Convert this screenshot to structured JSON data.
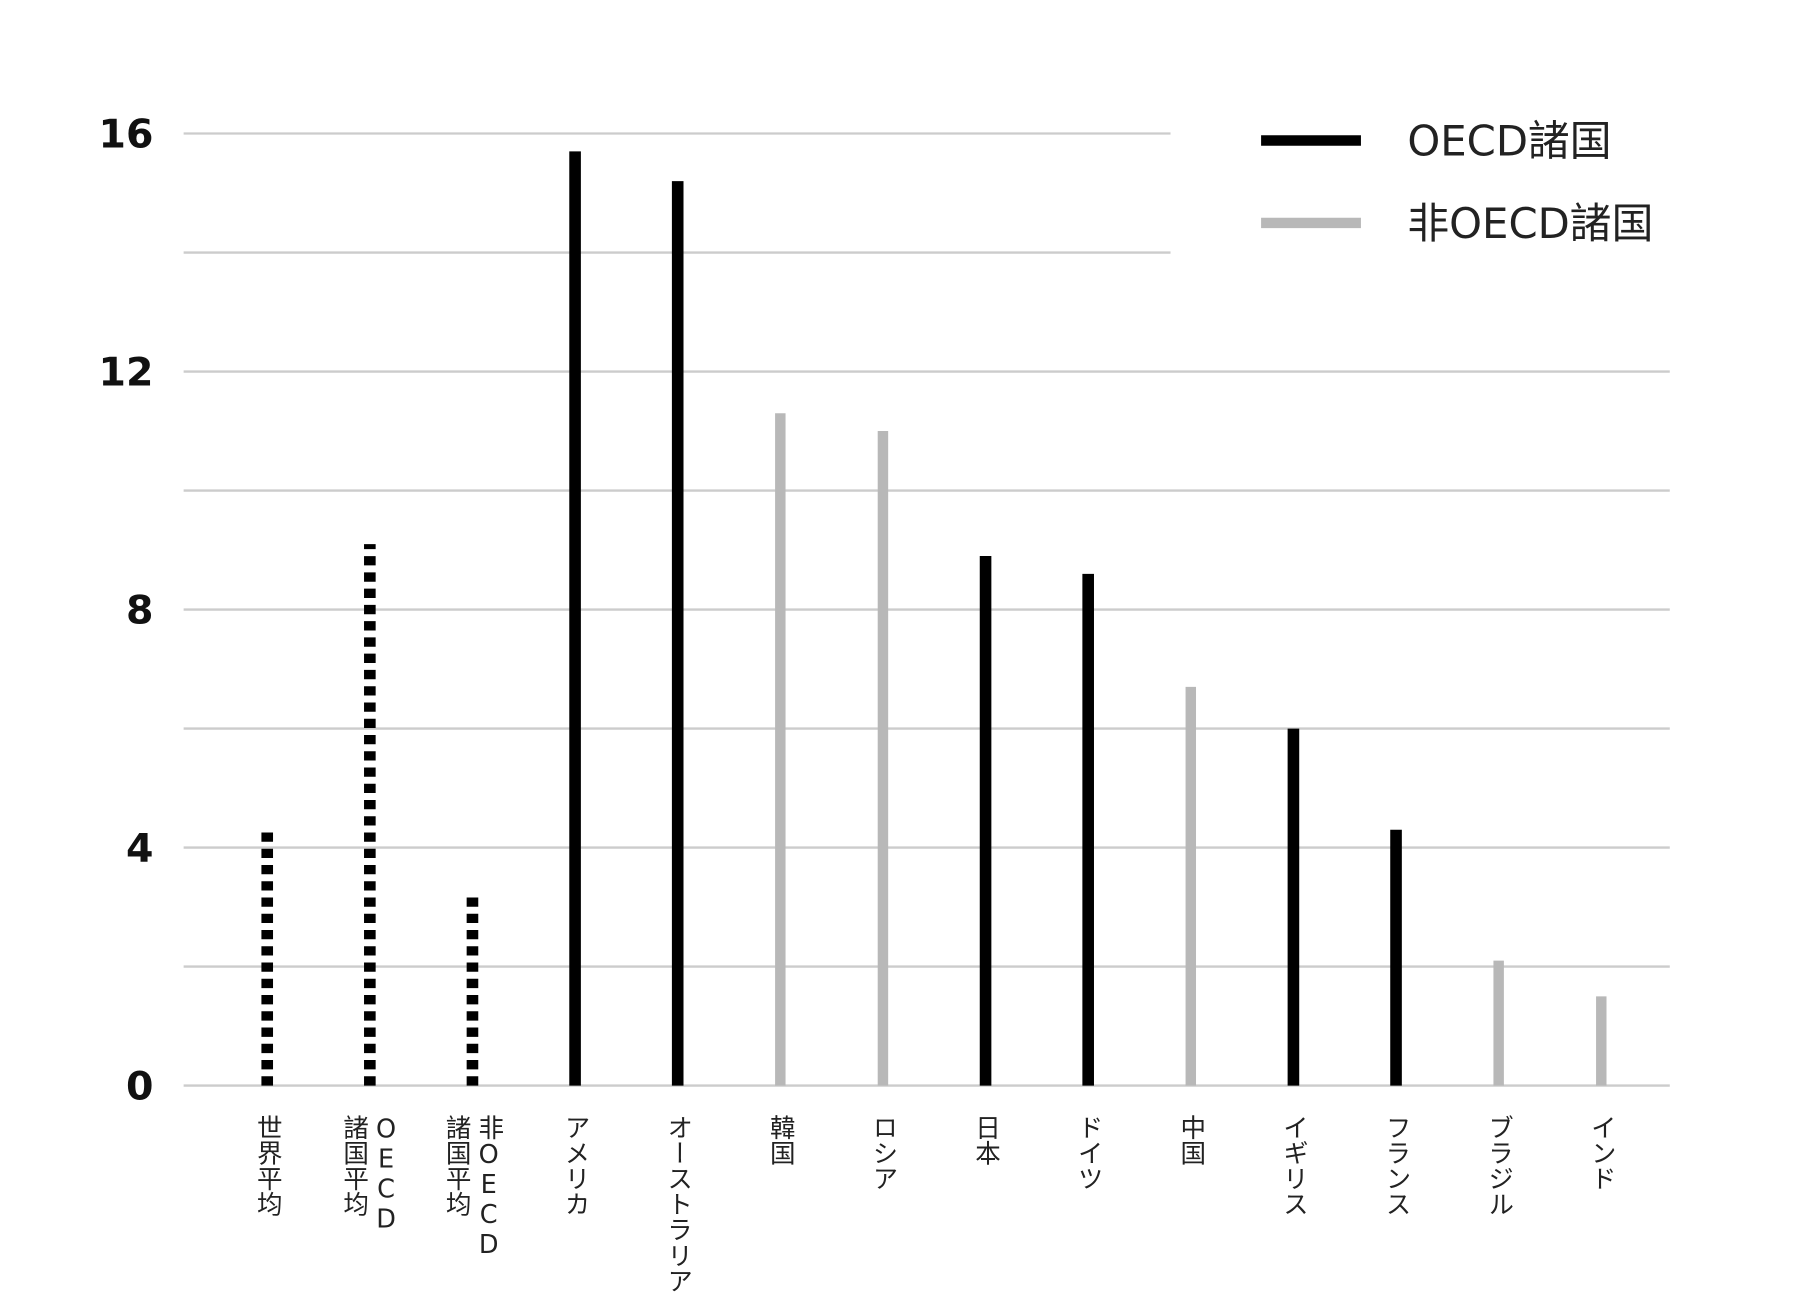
{
  "chart_data": {
    "type": "bar",
    "title": "",
    "xlabel": "",
    "ylabel": "",
    "ylim": [
      0,
      16
    ],
    "yticks": [
      0,
      4,
      8,
      12,
      16
    ],
    "grid_step": 2,
    "grid": true,
    "legend_position": "top-right",
    "colors": {
      "oecd": "#000000",
      "non_oecd": "#b8b8b8",
      "average": "#000000",
      "grid": "#cccccc"
    },
    "legend": [
      {
        "label": "OECD諸国",
        "group": "oecd"
      },
      {
        "label": "非OECD諸国",
        "group": "non_oecd"
      }
    ],
    "categories": [
      {
        "label": [
          "世界平均"
        ],
        "value": 4.3,
        "group": "average",
        "style": "dotted"
      },
      {
        "label": [
          "OECD",
          "諸国平均"
        ],
        "value": 9.1,
        "group": "average",
        "style": "dotted"
      },
      {
        "label": [
          "非OECD",
          "諸国平均"
        ],
        "value": 3.2,
        "group": "average",
        "style": "dotted"
      },
      {
        "label": [
          "アメリカ"
        ],
        "value": 15.7,
        "group": "oecd",
        "style": "solid"
      },
      {
        "label": [
          "オーストラリア"
        ],
        "value": 15.2,
        "group": "oecd",
        "style": "solid"
      },
      {
        "label": [
          "韓国"
        ],
        "value": 11.3,
        "group": "non_oecd",
        "style": "solid"
      },
      {
        "label": [
          "ロシア"
        ],
        "value": 11.0,
        "group": "non_oecd",
        "style": "solid"
      },
      {
        "label": [
          "日本"
        ],
        "value": 8.9,
        "group": "oecd",
        "style": "solid"
      },
      {
        "label": [
          "ドイツ"
        ],
        "value": 8.6,
        "group": "oecd",
        "style": "solid"
      },
      {
        "label": [
          "中国"
        ],
        "value": 6.7,
        "group": "non_oecd",
        "style": "solid"
      },
      {
        "label": [
          "イギリス"
        ],
        "value": 6.0,
        "group": "oecd",
        "style": "solid"
      },
      {
        "label": [
          "フランス"
        ],
        "value": 4.3,
        "group": "oecd",
        "style": "solid"
      },
      {
        "label": [
          "ブラジル"
        ],
        "value": 2.1,
        "group": "non_oecd",
        "style": "solid"
      },
      {
        "label": [
          "インド"
        ],
        "value": 1.5,
        "group": "non_oecd",
        "style": "solid"
      }
    ]
  }
}
